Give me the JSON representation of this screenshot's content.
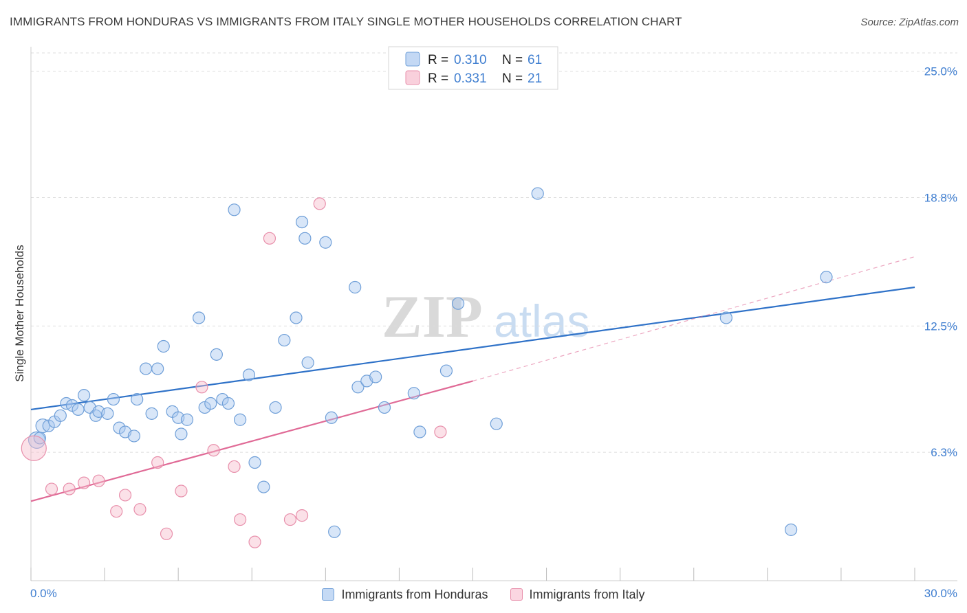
{
  "title": "IMMIGRANTS FROM HONDURAS VS IMMIGRANTS FROM ITALY SINGLE MOTHER HOUSEHOLDS CORRELATION CHART",
  "source": "Source: ZipAtlas.com",
  "watermark": {
    "zip": "ZIP",
    "atlas": "atlas"
  },
  "colors": {
    "honduras_fill": "#a9c8f0",
    "honduras_stroke": "#6f9fd8",
    "honduras_line": "#2f72c8",
    "italy_fill": "#f7bccd",
    "italy_stroke": "#e88fab",
    "italy_line": "#e06a96",
    "axis_label": "#3f7ed0",
    "grid": "#dddddd"
  },
  "legend_top": {
    "rows": [
      {
        "series": "honduras",
        "r_label": "R =",
        "r_value": "0.310",
        "n_label": "N =",
        "n_value": "61"
      },
      {
        "series": "italy",
        "r_label": "R =",
        "r_value": "0.331",
        "n_label": "N =",
        "n_value": "21"
      }
    ]
  },
  "legend_bottom": [
    {
      "series": "honduras",
      "label": "Immigrants from Honduras"
    },
    {
      "series": "italy",
      "label": "Immigrants from Italy"
    }
  ],
  "chart_data": {
    "type": "scatter",
    "title": "IMMIGRANTS FROM HONDURAS VS IMMIGRANTS FROM ITALY SINGLE MOTHER HOUSEHOLDS CORRELATION CHART",
    "xlabel": "",
    "ylabel": "Single Mother Households",
    "xlim": [
      0,
      30
    ],
    "ylim": [
      0,
      26
    ],
    "x_tick_labels": [
      "0.0%",
      "30.0%"
    ],
    "y_ticks": [
      6.3,
      12.5,
      18.8,
      25.0
    ],
    "y_tick_labels": [
      "6.3%",
      "12.5%",
      "18.8%",
      "25.0%"
    ],
    "grid": true,
    "legend_position": "top-center",
    "series": [
      {
        "name": "Immigrants from Honduras",
        "key": "honduras",
        "R": 0.31,
        "N": 61,
        "trend": {
          "x": [
            0,
            30
          ],
          "y": [
            8.4,
            14.4
          ],
          "dashed_extension": false
        },
        "points": [
          {
            "x": 0.2,
            "y": 6.9,
            "s": 12
          },
          {
            "x": 0.4,
            "y": 7.6,
            "s": 10
          },
          {
            "x": 0.6,
            "y": 7.6
          },
          {
            "x": 0.8,
            "y": 7.8
          },
          {
            "x": 1.0,
            "y": 8.1
          },
          {
            "x": 1.2,
            "y": 8.7
          },
          {
            "x": 1.4,
            "y": 8.6
          },
          {
            "x": 1.6,
            "y": 8.4
          },
          {
            "x": 1.8,
            "y": 9.1
          },
          {
            "x": 2.0,
            "y": 8.5
          },
          {
            "x": 2.2,
            "y": 8.1
          },
          {
            "x": 2.3,
            "y": 8.3
          },
          {
            "x": 2.6,
            "y": 8.2
          },
          {
            "x": 2.8,
            "y": 8.9
          },
          {
            "x": 3.0,
            "y": 7.5
          },
          {
            "x": 3.2,
            "y": 7.3
          },
          {
            "x": 3.5,
            "y": 7.1
          },
          {
            "x": 3.6,
            "y": 8.9
          },
          {
            "x": 3.9,
            "y": 10.4
          },
          {
            "x": 4.1,
            "y": 8.2
          },
          {
            "x": 4.3,
            "y": 10.4
          },
          {
            "x": 4.5,
            "y": 11.5
          },
          {
            "x": 4.8,
            "y": 8.3
          },
          {
            "x": 5.0,
            "y": 8.0
          },
          {
            "x": 5.1,
            "y": 7.2
          },
          {
            "x": 5.3,
            "y": 7.9
          },
          {
            "x": 5.7,
            "y": 12.9
          },
          {
            "x": 5.9,
            "y": 8.5
          },
          {
            "x": 6.1,
            "y": 8.7
          },
          {
            "x": 6.3,
            "y": 11.1
          },
          {
            "x": 6.5,
            "y": 8.9
          },
          {
            "x": 6.7,
            "y": 8.7
          },
          {
            "x": 6.9,
            "y": 18.2
          },
          {
            "x": 7.1,
            "y": 7.9
          },
          {
            "x": 7.4,
            "y": 10.1
          },
          {
            "x": 7.6,
            "y": 5.8
          },
          {
            "x": 7.9,
            "y": 4.6
          },
          {
            "x": 8.3,
            "y": 8.5
          },
          {
            "x": 8.6,
            "y": 11.8
          },
          {
            "x": 9.0,
            "y": 12.9
          },
          {
            "x": 9.2,
            "y": 17.6
          },
          {
            "x": 9.3,
            "y": 16.8
          },
          {
            "x": 9.4,
            "y": 10.7
          },
          {
            "x": 10.0,
            "y": 16.6
          },
          {
            "x": 10.2,
            "y": 8.0
          },
          {
            "x": 10.3,
            "y": 2.4
          },
          {
            "x": 11.0,
            "y": 14.4
          },
          {
            "x": 11.1,
            "y": 9.5
          },
          {
            "x": 11.4,
            "y": 9.8
          },
          {
            "x": 11.7,
            "y": 10.0
          },
          {
            "x": 12.0,
            "y": 8.5
          },
          {
            "x": 13.0,
            "y": 9.2
          },
          {
            "x": 13.2,
            "y": 7.3
          },
          {
            "x": 14.1,
            "y": 10.3
          },
          {
            "x": 14.5,
            "y": 13.6
          },
          {
            "x": 15.8,
            "y": 7.7
          },
          {
            "x": 17.2,
            "y": 19.0
          },
          {
            "x": 23.6,
            "y": 12.9
          },
          {
            "x": 25.8,
            "y": 2.5
          },
          {
            "x": 27.0,
            "y": 14.9
          },
          {
            "x": 0.3,
            "y": 7.0
          }
        ]
      },
      {
        "name": "Immigrants from Italy",
        "key": "italy",
        "R": 0.331,
        "N": 21,
        "trend": {
          "x": [
            0,
            15
          ],
          "y": [
            3.9,
            9.8
          ],
          "dashed_to": {
            "x": 30,
            "y": 15.9
          }
        },
        "points": [
          {
            "x": 0.1,
            "y": 6.5,
            "s": 18
          },
          {
            "x": 0.7,
            "y": 4.5
          },
          {
            "x": 1.3,
            "y": 4.5
          },
          {
            "x": 1.8,
            "y": 4.8
          },
          {
            "x": 2.3,
            "y": 4.9
          },
          {
            "x": 2.9,
            "y": 3.4
          },
          {
            "x": 3.2,
            "y": 4.2
          },
          {
            "x": 3.7,
            "y": 3.5
          },
          {
            "x": 4.3,
            "y": 5.8
          },
          {
            "x": 4.6,
            "y": 2.3
          },
          {
            "x": 5.1,
            "y": 4.4
          },
          {
            "x": 5.8,
            "y": 9.5
          },
          {
            "x": 6.2,
            "y": 6.4
          },
          {
            "x": 6.9,
            "y": 5.6
          },
          {
            "x": 7.1,
            "y": 3.0
          },
          {
            "x": 7.6,
            "y": 1.9
          },
          {
            "x": 8.1,
            "y": 16.8
          },
          {
            "x": 8.8,
            "y": 3.0
          },
          {
            "x": 9.2,
            "y": 3.2
          },
          {
            "x": 9.8,
            "y": 18.5
          },
          {
            "x": 13.9,
            "y": 7.3
          }
        ]
      }
    ]
  }
}
